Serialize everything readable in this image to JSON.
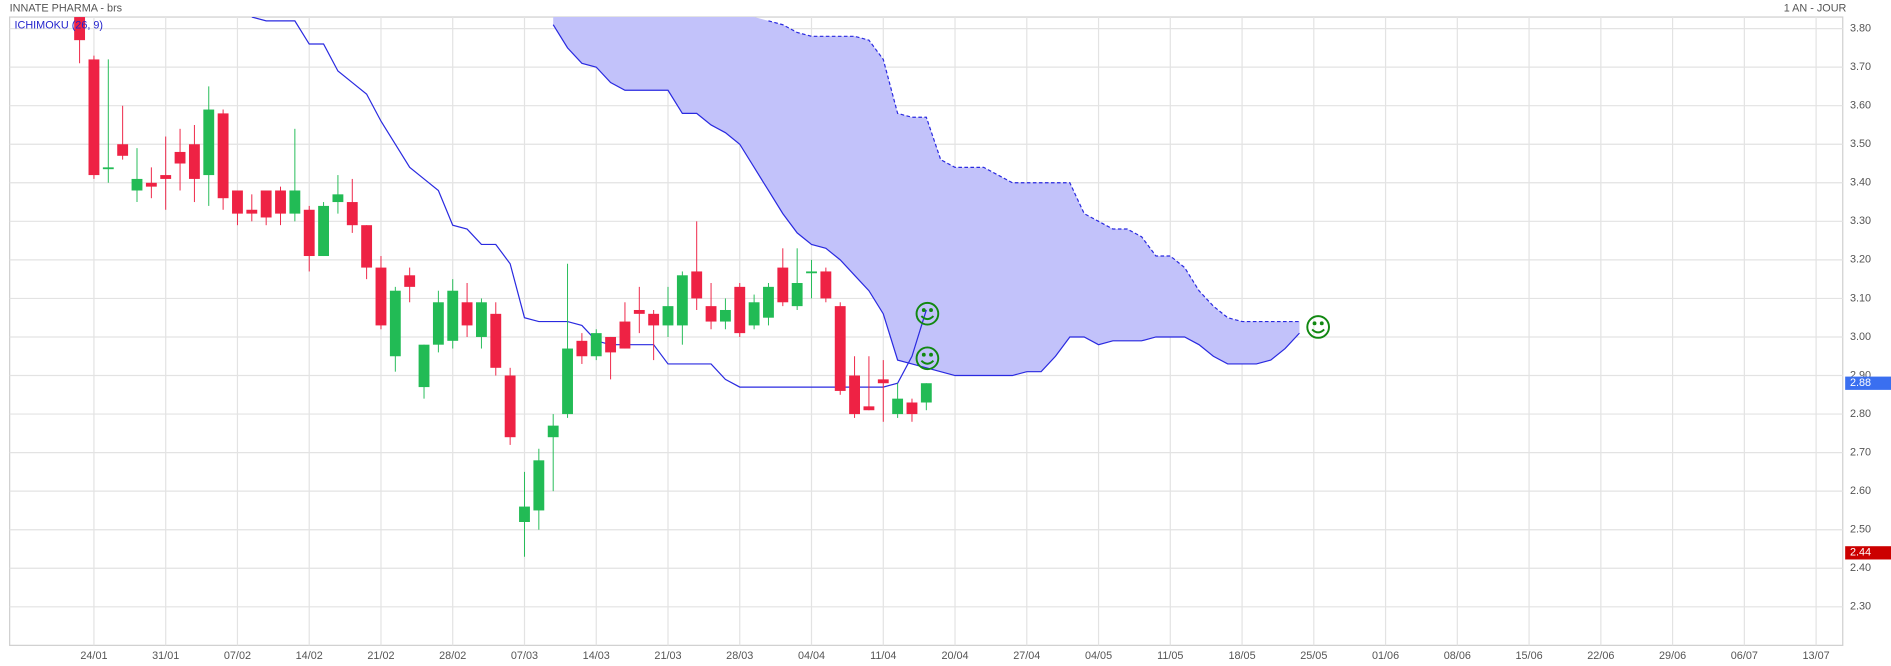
{
  "chart_data": {
    "type": "candlestick",
    "title": "INNATE PHARMA - brs",
    "period": "1 AN - JOUR",
    "ylim": [
      2.2,
      3.83
    ],
    "yticks": [
      {
        "value": 2.3,
        "label": "2.30"
      },
      {
        "value": 2.4,
        "label": "2.40"
      },
      {
        "value": 2.5,
        "label": "2.50"
      },
      {
        "value": 2.6,
        "label": "2.60"
      },
      {
        "value": 2.7,
        "label": "2.70"
      },
      {
        "value": 2.8,
        "label": "2.80"
      },
      {
        "value": 2.9,
        "label": "2.90"
      },
      {
        "value": 3.0,
        "label": "3.00"
      },
      {
        "value": 3.1,
        "label": "3.10"
      },
      {
        "value": 3.2,
        "label": "3.20"
      },
      {
        "value": 3.3,
        "label": "3.30"
      },
      {
        "value": 3.4,
        "label": "3.40"
      },
      {
        "value": 3.5,
        "label": "3.50"
      },
      {
        "value": 3.6,
        "label": "3.60"
      },
      {
        "value": 3.7,
        "label": "3.70"
      },
      {
        "value": 3.8,
        "label": "3.80"
      }
    ],
    "grid": true,
    "categories": [
      null,
      "24/01",
      null,
      null,
      null,
      null,
      "31/01",
      null,
      null,
      null,
      null,
      "07/02",
      null,
      null,
      null,
      null,
      "14/02",
      null,
      null,
      null,
      null,
      "21/02",
      null,
      null,
      null,
      null,
      "28/02",
      null,
      null,
      null,
      null,
      "07/03",
      null,
      null,
      null,
      null,
      "14/03",
      null,
      null,
      null,
      null,
      "21/03",
      null,
      null,
      null,
      null,
      "28/03",
      null,
      null,
      null,
      null,
      "04/04",
      null,
      null,
      null,
      null,
      "11/04",
      null,
      null,
      null,
      null,
      "20/04",
      null,
      null,
      null,
      null,
      "27/04",
      null,
      null,
      null,
      null,
      "04/05",
      null,
      null,
      null,
      null,
      "11/05",
      null,
      null,
      null,
      null,
      "18/05",
      null,
      null,
      null,
      null,
      "25/05",
      null,
      null,
      null,
      null,
      "01/06",
      null,
      null,
      null,
      null,
      "08/06",
      null,
      null,
      null,
      null,
      "15/06",
      null,
      null,
      null,
      null,
      "22/06",
      null,
      null,
      null,
      null,
      "29/06",
      null,
      null,
      null,
      null,
      "06/07",
      null,
      null,
      null,
      null,
      "13/07",
      null
    ],
    "candles": {
      "up_color": "#22bb55",
      "down_color": "#ee2244",
      "open": [
        3.83,
        3.72,
        3.44,
        3.5,
        3.38,
        3.4,
        3.42,
        3.48,
        3.5,
        3.42,
        3.58,
        3.38,
        3.33,
        3.38,
        3.38,
        3.32,
        3.33,
        3.21,
        3.35,
        3.35,
        3.29,
        3.18,
        2.95,
        3.16,
        2.87,
        2.98,
        2.99,
        3.09,
        3.0,
        3.06,
        2.9,
        2.52,
        2.55,
        2.74,
        2.8,
        2.99,
        2.95,
        3.0,
        3.04,
        3.07,
        3.06,
        3.03,
        3.03,
        3.17,
        3.08,
        3.04,
        3.13,
        3.03,
        3.05,
        3.18,
        3.08,
        3.17,
        3.17,
        3.08,
        2.9,
        2.82,
        2.89,
        2.8,
        2.83,
        2.83,
        null,
        null,
        null,
        null,
        null,
        null,
        null,
        null,
        null,
        null,
        null,
        null,
        null,
        null,
        null,
        null,
        null,
        null,
        null,
        null,
        null,
        null,
        null,
        null,
        null,
        null,
        null,
        null,
        null,
        null,
        null,
        null,
        null,
        null,
        null,
        null,
        null,
        null,
        null,
        null,
        null,
        null,
        null,
        null,
        null,
        null,
        null,
        null,
        null,
        null,
        null,
        null,
        null,
        null,
        null,
        null,
        null,
        null,
        null,
        null,
        null,
        null,
        null
      ],
      "high": [
        3.83,
        3.73,
        3.72,
        3.6,
        3.49,
        3.44,
        3.52,
        3.54,
        3.55,
        3.65,
        3.59,
        3.38,
        3.37,
        3.38,
        3.39,
        3.54,
        3.34,
        3.35,
        3.42,
        3.41,
        3.29,
        3.21,
        3.13,
        3.18,
        2.98,
        3.12,
        3.15,
        3.14,
        3.1,
        3.09,
        2.92,
        2.65,
        2.71,
        2.8,
        3.19,
        3.01,
        3.02,
        3.0,
        3.09,
        3.13,
        3.07,
        3.13,
        3.17,
        3.3,
        3.14,
        3.1,
        3.14,
        3.11,
        3.14,
        3.23,
        3.23,
        3.2,
        3.18,
        3.09,
        2.95,
        2.95,
        2.94,
        2.88,
        2.84,
        2.88,
        null,
        null,
        null,
        null,
        null,
        null,
        null,
        null,
        null,
        null,
        null,
        null,
        null,
        null,
        null,
        null,
        null,
        null,
        null,
        null,
        null,
        null,
        null,
        null,
        null,
        null,
        null,
        null,
        null,
        null,
        null,
        null,
        null,
        null,
        null,
        null,
        null,
        null,
        null,
        null,
        null,
        null,
        null,
        null,
        null,
        null,
        null,
        null,
        null,
        null,
        null,
        null,
        null,
        null,
        null,
        null,
        null,
        null,
        null,
        null,
        null,
        null,
        null
      ],
      "low": [
        3.71,
        3.41,
        3.4,
        3.46,
        3.35,
        3.36,
        3.33,
        3.38,
        3.35,
        3.34,
        3.33,
        3.29,
        3.3,
        3.29,
        3.29,
        3.3,
        3.17,
        3.21,
        3.32,
        3.27,
        3.15,
        3.02,
        2.91,
        3.09,
        2.84,
        2.96,
        2.97,
        3.0,
        2.97,
        2.9,
        2.72,
        2.43,
        2.5,
        2.6,
        2.79,
        2.93,
        2.94,
        2.89,
        2.97,
        3.01,
        2.94,
        3.0,
        2.98,
        3.07,
        3.02,
        3.02,
        3.0,
        3.02,
        3.03,
        3.08,
        3.07,
        3.1,
        3.09,
        2.85,
        2.79,
        2.81,
        2.78,
        2.79,
        2.78,
        2.81,
        null,
        null,
        null,
        null,
        null,
        null,
        null,
        null,
        null,
        null,
        null,
        null,
        null,
        null,
        null,
        null,
        null,
        null,
        null,
        null,
        null,
        null,
        null,
        null,
        null,
        null,
        null,
        null,
        null,
        null,
        null,
        null,
        null,
        null,
        null,
        null,
        null,
        null,
        null,
        null,
        null,
        null,
        null,
        null,
        null,
        null,
        null,
        null,
        null,
        null,
        null,
        null,
        null,
        null,
        null,
        null,
        null,
        null,
        null,
        null,
        null,
        null,
        null
      ],
      "close": [
        3.77,
        3.42,
        3.44,
        3.47,
        3.41,
        3.39,
        3.41,
        3.45,
        3.41,
        3.59,
        3.36,
        3.32,
        3.32,
        3.31,
        3.32,
        3.38,
        3.21,
        3.34,
        3.37,
        3.29,
        3.18,
        3.03,
        3.12,
        3.13,
        2.98,
        3.09,
        3.12,
        3.03,
        3.09,
        2.92,
        2.74,
        2.56,
        2.68,
        2.77,
        2.97,
        2.95,
        3.01,
        2.96,
        2.97,
        3.06,
        3.03,
        3.08,
        3.16,
        3.1,
        3.04,
        3.07,
        3.01,
        3.09,
        3.13,
        3.09,
        3.14,
        3.17,
        3.1,
        2.86,
        2.8,
        2.81,
        2.88,
        2.84,
        2.8,
        2.88,
        null,
        null,
        null,
        null,
        null,
        null,
        null,
        null,
        null,
        null,
        null,
        null,
        null,
        null,
        null,
        null,
        null,
        null,
        null,
        null,
        null,
        null,
        null,
        null,
        null,
        null,
        null,
        null,
        null,
        null,
        null,
        null,
        null,
        null,
        null,
        null,
        null,
        null,
        null,
        null,
        null,
        null,
        null,
        null,
        null,
        null,
        null,
        null,
        null,
        null,
        null,
        null,
        null,
        null,
        null,
        null,
        null,
        null,
        null,
        null,
        null,
        null,
        null
      ]
    },
    "ichimoku": {
      "label": "ICHIMOKU (26, 9)",
      "color": "#2a2ae0",
      "cloud_color": "#c2c2fa",
      "line": [
        null,
        null,
        null,
        null,
        null,
        null,
        null,
        null,
        null,
        null,
        null,
        null,
        3.83,
        3.82,
        3.82,
        3.82,
        3.76,
        3.76,
        3.69,
        3.66,
        3.63,
        3.56,
        3.5,
        3.44,
        3.41,
        3.38,
        3.29,
        3.28,
        3.24,
        3.24,
        3.19,
        3.05,
        3.04,
        3.04,
        3.04,
        3.03,
        2.99,
        2.98,
        2.98,
        2.98,
        2.98,
        2.93,
        2.93,
        2.93,
        2.93,
        2.89,
        2.87,
        2.87,
        2.87,
        2.87,
        2.87,
        2.87,
        2.87,
        2.87,
        2.87,
        2.87,
        2.87,
        2.88,
        2.95,
        3.07,
        null,
        null,
        null,
        null,
        null,
        null,
        null,
        null,
        null,
        null,
        null,
        null,
        null,
        null,
        null,
        null,
        null,
        null,
        null,
        null,
        null,
        null,
        null,
        null,
        null,
        null,
        null,
        null,
        null,
        null,
        null,
        null,
        null,
        null,
        null,
        null,
        null,
        null,
        null,
        null,
        null,
        null,
        null,
        null,
        null,
        null,
        null,
        null,
        null,
        null,
        null,
        null,
        null,
        null,
        null,
        null,
        null,
        null,
        null,
        null,
        null,
        null,
        null
      ],
      "span_a": [
        null,
        null,
        null,
        null,
        null,
        null,
        null,
        null,
        null,
        null,
        null,
        null,
        null,
        null,
        null,
        null,
        null,
        null,
        null,
        null,
        null,
        null,
        null,
        null,
        null,
        null,
        null,
        null,
        null,
        null,
        null,
        null,
        null,
        3.81,
        3.75,
        3.71,
        3.7,
        3.66,
        3.64,
        3.64,
        3.64,
        3.64,
        3.58,
        3.58,
        3.55,
        3.53,
        3.5,
        3.44,
        3.38,
        3.32,
        3.27,
        3.24,
        3.23,
        3.2,
        3.16,
        3.12,
        3.06,
        2.94,
        2.93,
        2.92,
        2.91,
        2.9,
        2.9,
        2.9,
        2.9,
        2.9,
        2.91,
        2.91,
        2.95,
        3.0,
        3.0,
        2.98,
        2.99,
        2.99,
        2.99,
        3.0,
        3.0,
        3.0,
        2.98,
        2.95,
        2.93,
        2.93,
        2.93,
        2.94,
        2.97,
        3.01,
        null,
        null,
        null,
        null,
        null,
        null,
        null,
        null,
        null,
        null,
        null,
        null,
        null,
        null,
        null,
        null,
        null,
        null,
        null,
        null,
        null,
        null,
        null,
        null,
        null,
        null,
        null,
        null,
        null,
        null,
        null,
        null,
        null,
        null,
        null,
        null,
        null
      ],
      "span_b": [
        null,
        null,
        null,
        null,
        null,
        null,
        null,
        null,
        null,
        null,
        null,
        null,
        null,
        null,
        null,
        null,
        null,
        null,
        null,
        null,
        null,
        null,
        null,
        null,
        null,
        null,
        null,
        null,
        null,
        null,
        null,
        null,
        null,
        null,
        null,
        null,
        null,
        null,
        null,
        null,
        null,
        null,
        null,
        null,
        null,
        null,
        null,
        null,
        3.82,
        3.81,
        3.79,
        3.78,
        3.78,
        3.78,
        3.78,
        3.77,
        3.72,
        3.58,
        3.57,
        3.57,
        3.46,
        3.44,
        3.44,
        3.44,
        3.42,
        3.4,
        3.4,
        3.4,
        3.4,
        3.4,
        3.32,
        3.3,
        3.28,
        3.28,
        3.26,
        3.21,
        3.21,
        3.18,
        3.12,
        3.08,
        3.05,
        3.04,
        3.04,
        3.04,
        3.04,
        3.04,
        null,
        null,
        null,
        null,
        null,
        null,
        null,
        null,
        null,
        null,
        null,
        null,
        null,
        null,
        null,
        null,
        null,
        null,
        null,
        null,
        null,
        null,
        null,
        null,
        null,
        null,
        null,
        null,
        null,
        null,
        null,
        null,
        null,
        null,
        null,
        null,
        null
      ]
    },
    "price_tags": [
      {
        "value": 2.88,
        "color": "#3a6ff0"
      },
      {
        "value": 2.44,
        "color": "#cc0000"
      }
    ]
  }
}
